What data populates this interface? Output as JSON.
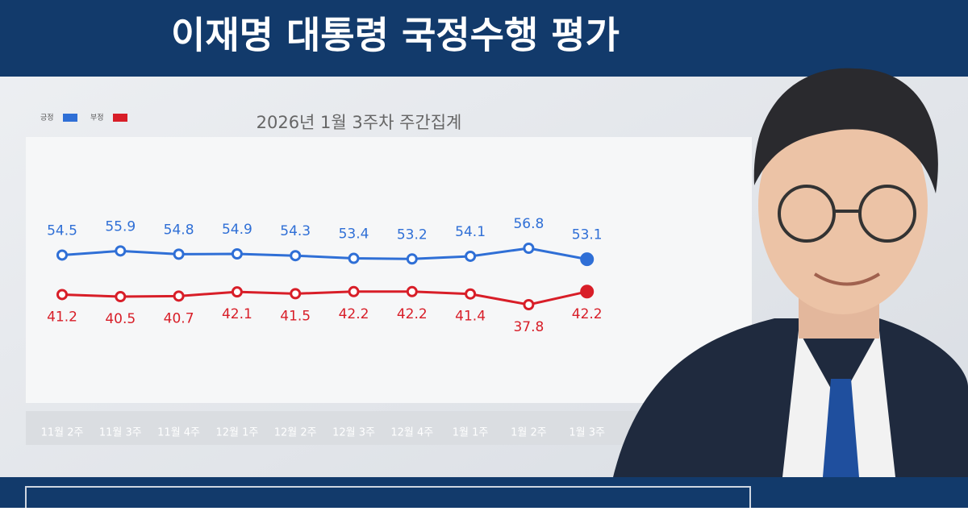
{
  "chart_data": {
    "type": "line",
    "title": "이재명 대통령 국정수행 평가",
    "subtitle": "2026년 1월 3주차 주간집계",
    "categories": [
      "11월 2주",
      "11월 3주",
      "11월 4주",
      "12월 1주",
      "12월 2주",
      "12월 3주",
      "12월 4주",
      "1월 1주",
      "1월 2주",
      "1월 3주"
    ],
    "series": [
      {
        "name": "긍정",
        "color": "#2f6fd6",
        "values": [
          54.5,
          55.9,
          54.8,
          54.9,
          54.3,
          53.4,
          53.2,
          54.1,
          56.8,
          53.1
        ]
      },
      {
        "name": "부정",
        "color": "#d81e28",
        "values": [
          41.2,
          40.5,
          40.7,
          42.1,
          41.5,
          42.2,
          42.2,
          41.4,
          37.8,
          42.2
        ]
      }
    ]
  }
}
